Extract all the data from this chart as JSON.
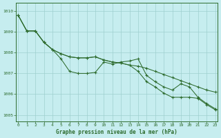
{
  "xlabel": "Graphe pression niveau de la mer (hPa)",
  "ylim": [
    1004.7,
    1010.4
  ],
  "xlim": [
    -0.3,
    23.3
  ],
  "background_color": "#c6edef",
  "grid_color": "#9ecfcf",
  "line_color": "#2d6b2d",
  "xticks": [
    0,
    1,
    2,
    3,
    4,
    5,
    6,
    7,
    8,
    9,
    10,
    11,
    12,
    13,
    14,
    15,
    16,
    17,
    18,
    19,
    20,
    21,
    22,
    23
  ],
  "yticks": [
    1005,
    1006,
    1007,
    1008,
    1009,
    1010
  ],
  "lineA": [
    1009.8,
    1009.05,
    1009.05,
    1008.5,
    1008.15,
    1007.95,
    1007.8,
    1007.75,
    1007.75,
    1007.8,
    1007.65,
    1007.55,
    1007.5,
    1007.4,
    1007.35,
    1007.25,
    1007.1,
    1006.95,
    1006.8,
    1006.65,
    1006.5,
    1006.35,
    1006.2,
    1006.1
  ],
  "lineB": [
    1009.8,
    1009.05,
    1009.05,
    1008.5,
    1008.15,
    1007.7,
    1007.1,
    1007.0,
    1007.0,
    1007.05,
    1007.55,
    1007.45,
    1007.55,
    1007.6,
    1007.7,
    1006.9,
    1006.6,
    1006.35,
    1006.2,
    1006.5,
    1006.35,
    1005.85,
    1005.55,
    1005.3
  ],
  "lineC": [
    1009.8,
    1009.05,
    1009.05,
    1008.5,
    1008.15,
    1007.95,
    1007.8,
    1007.75,
    1007.75,
    1007.8,
    1007.65,
    1007.55,
    1007.5,
    1007.4,
    1007.1,
    1006.6,
    1006.35,
    1006.05,
    1005.85,
    1005.85,
    1005.85,
    1005.8,
    1005.5,
    1005.25
  ]
}
